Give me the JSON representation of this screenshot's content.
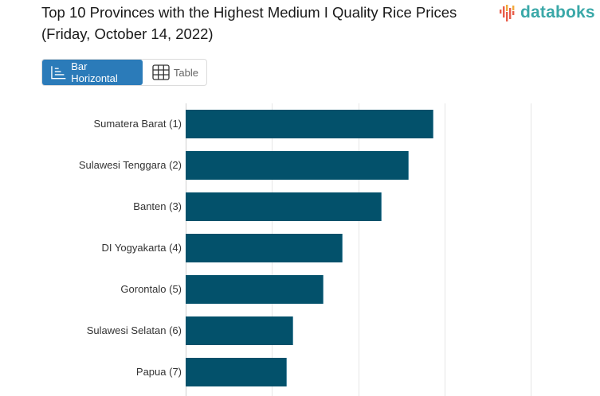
{
  "header": {
    "title": "Top 10 Provinces with the Highest Medium I Quality Rice Prices (Friday, October 14, 2022)",
    "logo_text": "databoks",
    "logo_icon": "bar-waveform-icon"
  },
  "view_toggle": {
    "options": [
      {
        "label": "Bar Horizontal",
        "icon": "bar-horizontal-icon",
        "active": true
      },
      {
        "label": "Table",
        "icon": "table-grid-icon",
        "active": false
      }
    ]
  },
  "colors": {
    "bar": "#03516b",
    "toggle_active": "#2b7bb9",
    "logo": "#3aa8a8",
    "gridline": "#e6e6e6"
  },
  "chart_data": {
    "type": "bar",
    "orientation": "horizontal",
    "title": "Top 10 Provinces with the Highest Medium I Quality Rice Prices (Friday, October 14, 2022)",
    "xlabel": "",
    "ylabel": "",
    "categories": [
      "Sumatera Barat (1)",
      "Sulawesi Tenggara (2)",
      "Banten (3)",
      "DI Yogyakarta (4)",
      "Gorontalo (5)",
      "Sulawesi Selatan (6)",
      "Papua (7)"
    ],
    "values": [
      2.87,
      2.59,
      2.27,
      1.82,
      1.6,
      1.25,
      1.17
    ],
    "value_unit_note": "values in gridline units (tick labels not visible in crop)",
    "xlim": [
      0,
      4
    ],
    "grid": true,
    "gridlines": [
      0,
      1,
      2,
      3,
      4
    ],
    "legend": "none"
  }
}
